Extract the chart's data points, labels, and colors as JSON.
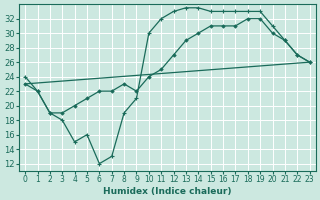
{
  "xlabel": "Humidex (Indice chaleur)",
  "ylabel": "",
  "background_color": "#cce8e0",
  "grid_color": "#ffffff",
  "line_color": "#1a6b5a",
  "xlim": [
    -0.5,
    23.5
  ],
  "ylim": [
    11,
    34
  ],
  "yticks": [
    12,
    14,
    16,
    18,
    20,
    22,
    24,
    26,
    28,
    30,
    32
  ],
  "xticks": [
    0,
    1,
    2,
    3,
    4,
    5,
    6,
    7,
    8,
    9,
    10,
    11,
    12,
    13,
    14,
    15,
    16,
    17,
    18,
    19,
    20,
    21,
    22,
    23
  ],
  "line1_x": [
    0,
    1,
    2,
    3,
    4,
    5,
    6,
    7,
    8,
    9,
    10,
    11,
    12,
    13,
    14,
    15,
    16,
    17,
    18,
    19,
    20,
    21,
    22,
    23
  ],
  "line1_y": [
    24,
    22,
    19,
    18,
    15,
    16,
    12,
    13,
    19,
    21,
    30,
    32,
    33,
    33.5,
    33.5,
    33,
    33,
    33,
    33,
    33,
    31,
    29,
    27,
    26
  ],
  "line2_x": [
    0,
    1,
    2,
    3,
    4,
    5,
    6,
    7,
    8,
    9,
    10,
    11,
    12,
    13,
    14,
    15,
    16,
    17,
    18,
    19,
    20,
    21,
    22,
    23
  ],
  "line2_y": [
    23,
    22,
    19,
    19,
    20,
    21,
    22,
    22,
    23,
    22,
    24,
    25,
    27,
    29,
    30,
    31,
    31,
    31,
    32,
    32,
    30,
    29,
    27,
    26
  ],
  "line3_x": [
    0,
    23
  ],
  "line3_y": [
    23,
    26
  ]
}
